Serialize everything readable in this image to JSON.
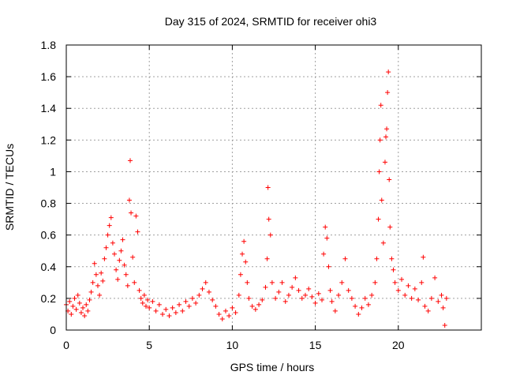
{
  "chart_data": {
    "type": "scatter",
    "title": "Day 315 of 2024, SRMTID for receiver ohi3",
    "xlabel": "GPS time / hours",
    "ylabel": "SRMTID / TECUs",
    "xlim": [
      0,
      25
    ],
    "ylim": [
      0,
      1.8
    ],
    "xticks": [
      0,
      5,
      10,
      15,
      20
    ],
    "xtick_labels": [
      "0",
      "5",
      "10",
      "15",
      "20"
    ],
    "yticks": [
      0,
      0.2,
      0.4,
      0.6,
      0.8,
      1.0,
      1.2,
      1.4,
      1.6,
      1.8
    ],
    "ytick_labels": [
      "0",
      "0.2",
      "0.4",
      "0.6",
      "0.8",
      "1",
      "1.2",
      "1.4",
      "1.6",
      "1.8"
    ],
    "grid": true,
    "marker": "+",
    "color": "#ff0000",
    "series": [
      {
        "name": "SRMTID ohi3",
        "points": [
          [
            0.0,
            0.16
          ],
          [
            0.1,
            0.12
          ],
          [
            0.2,
            0.18
          ],
          [
            0.3,
            0.1
          ],
          [
            0.4,
            0.15
          ],
          [
            0.5,
            0.2
          ],
          [
            0.6,
            0.13
          ],
          [
            0.7,
            0.22
          ],
          [
            0.8,
            0.17
          ],
          [
            0.9,
            0.11
          ],
          [
            1.0,
            0.14
          ],
          [
            1.1,
            0.09
          ],
          [
            1.2,
            0.16
          ],
          [
            1.3,
            0.12
          ],
          [
            1.4,
            0.19
          ],
          [
            1.5,
            0.24
          ],
          [
            1.6,
            0.3
          ],
          [
            1.7,
            0.42
          ],
          [
            1.8,
            0.35
          ],
          [
            1.9,
            0.28
          ],
          [
            2.0,
            0.22
          ],
          [
            2.1,
            0.36
          ],
          [
            2.2,
            0.31
          ],
          [
            2.3,
            0.45
          ],
          [
            2.4,
            0.52
          ],
          [
            2.5,
            0.6
          ],
          [
            2.6,
            0.66
          ],
          [
            2.7,
            0.71
          ],
          [
            2.8,
            0.55
          ],
          [
            2.9,
            0.48
          ],
          [
            3.0,
            0.38
          ],
          [
            3.1,
            0.32
          ],
          [
            3.2,
            0.44
          ],
          [
            3.3,
            0.5
          ],
          [
            3.4,
            0.57
          ],
          [
            3.5,
            0.41
          ],
          [
            3.6,
            0.35
          ],
          [
            3.7,
            0.28
          ],
          [
            3.8,
            0.82
          ],
          [
            3.85,
            1.07
          ],
          [
            3.9,
            0.74
          ],
          [
            4.0,
            0.46
          ],
          [
            4.1,
            0.3
          ],
          [
            4.2,
            0.72
          ],
          [
            4.3,
            0.62
          ],
          [
            4.4,
            0.25
          ],
          [
            4.5,
            0.2
          ],
          [
            4.6,
            0.17
          ],
          [
            4.7,
            0.22
          ],
          [
            4.8,
            0.15
          ],
          [
            4.9,
            0.19
          ],
          [
            5.0,
            0.14
          ],
          [
            5.2,
            0.18
          ],
          [
            5.4,
            0.12
          ],
          [
            5.6,
            0.16
          ],
          [
            5.8,
            0.1
          ],
          [
            6.0,
            0.13
          ],
          [
            6.2,
            0.09
          ],
          [
            6.4,
            0.14
          ],
          [
            6.6,
            0.11
          ],
          [
            6.8,
            0.16
          ],
          [
            7.0,
            0.12
          ],
          [
            7.2,
            0.18
          ],
          [
            7.4,
            0.15
          ],
          [
            7.6,
            0.2
          ],
          [
            7.8,
            0.17
          ],
          [
            8.0,
            0.22
          ],
          [
            8.2,
            0.26
          ],
          [
            8.4,
            0.3
          ],
          [
            8.6,
            0.24
          ],
          [
            8.8,
            0.19
          ],
          [
            9.0,
            0.15
          ],
          [
            9.2,
            0.1
          ],
          [
            9.4,
            0.07
          ],
          [
            9.6,
            0.12
          ],
          [
            9.8,
            0.09
          ],
          [
            10.0,
            0.14
          ],
          [
            10.2,
            0.11
          ],
          [
            10.4,
            0.22
          ],
          [
            10.5,
            0.35
          ],
          [
            10.6,
            0.48
          ],
          [
            10.7,
            0.56
          ],
          [
            10.8,
            0.43
          ],
          [
            10.9,
            0.3
          ],
          [
            11.0,
            0.2
          ],
          [
            11.2,
            0.15
          ],
          [
            11.4,
            0.13
          ],
          [
            11.6,
            0.16
          ],
          [
            11.8,
            0.19
          ],
          [
            12.0,
            0.27
          ],
          [
            12.1,
            0.45
          ],
          [
            12.15,
            0.9
          ],
          [
            12.2,
            0.7
          ],
          [
            12.3,
            0.6
          ],
          [
            12.4,
            0.3
          ],
          [
            12.6,
            0.2
          ],
          [
            12.8,
            0.24
          ],
          [
            13.0,
            0.3
          ],
          [
            13.2,
            0.18
          ],
          [
            13.4,
            0.22
          ],
          [
            13.6,
            0.27
          ],
          [
            13.8,
            0.33
          ],
          [
            14.0,
            0.25
          ],
          [
            14.2,
            0.2
          ],
          [
            14.4,
            0.22
          ],
          [
            14.6,
            0.26
          ],
          [
            14.8,
            0.21
          ],
          [
            15.0,
            0.17
          ],
          [
            15.2,
            0.23
          ],
          [
            15.4,
            0.19
          ],
          [
            15.5,
            0.48
          ],
          [
            15.6,
            0.65
          ],
          [
            15.7,
            0.58
          ],
          [
            15.8,
            0.4
          ],
          [
            15.9,
            0.25
          ],
          [
            16.0,
            0.18
          ],
          [
            16.2,
            0.12
          ],
          [
            16.4,
            0.22
          ],
          [
            16.6,
            0.3
          ],
          [
            16.8,
            0.45
          ],
          [
            17.0,
            0.25
          ],
          [
            17.2,
            0.2
          ],
          [
            17.4,
            0.15
          ],
          [
            17.6,
            0.1
          ],
          [
            17.8,
            0.14
          ],
          [
            18.0,
            0.2
          ],
          [
            18.2,
            0.16
          ],
          [
            18.4,
            0.22
          ],
          [
            18.6,
            0.3
          ],
          [
            18.7,
            0.45
          ],
          [
            18.8,
            0.7
          ],
          [
            18.85,
            1.0
          ],
          [
            18.9,
            1.2
          ],
          [
            18.95,
            1.42
          ],
          [
            19.0,
            0.82
          ],
          [
            19.1,
            0.55
          ],
          [
            19.2,
            1.06
          ],
          [
            19.25,
            1.22
          ],
          [
            19.3,
            1.27
          ],
          [
            19.35,
            1.5
          ],
          [
            19.4,
            1.63
          ],
          [
            19.45,
            0.95
          ],
          [
            19.5,
            0.65
          ],
          [
            19.6,
            0.45
          ],
          [
            19.7,
            0.38
          ],
          [
            19.8,
            0.3
          ],
          [
            20.0,
            0.25
          ],
          [
            20.2,
            0.32
          ],
          [
            20.4,
            0.22
          ],
          [
            20.6,
            0.28
          ],
          [
            20.8,
            0.2
          ],
          [
            21.0,
            0.26
          ],
          [
            21.2,
            0.19
          ],
          [
            21.4,
            0.3
          ],
          [
            21.5,
            0.46
          ],
          [
            21.6,
            0.15
          ],
          [
            21.8,
            0.12
          ],
          [
            22.0,
            0.2
          ],
          [
            22.2,
            0.33
          ],
          [
            22.4,
            0.18
          ],
          [
            22.6,
            0.22
          ],
          [
            22.7,
            0.14
          ],
          [
            22.8,
            0.03
          ],
          [
            22.9,
            0.2
          ]
        ]
      }
    ]
  }
}
